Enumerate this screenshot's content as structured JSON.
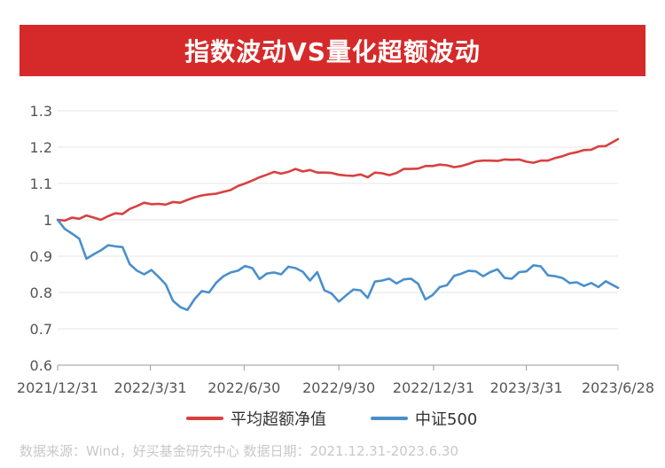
{
  "title": "指数波动VS量化超额波动",
  "source_note": "数据来源：Wind，好买基金研究中心  数据日期：2021.12.31-2023.6.30",
  "colors": {
    "title_bg": "#d62a2a",
    "series_excess": "#d94040",
    "series_csi500": "#4a8fcc"
  },
  "chart_data": {
    "type": "line",
    "title": "指数波动VS量化超额波动",
    "ylim": [
      0.6,
      1.3
    ],
    "yticks": [
      0.6,
      0.7,
      0.8,
      0.9,
      1,
      1.1,
      1.2,
      1.3
    ],
    "ytick_labels": [
      "0.6",
      "0.7",
      "0.8",
      "0.9",
      "1",
      "1.1",
      "1.2",
      "1.3"
    ],
    "grid": true,
    "legend_position": "bottom",
    "xlim": [
      "2021-12-31",
      "2023-06-28"
    ],
    "xticks": [
      "2021-12-31",
      "2022-03-31",
      "2022-06-30",
      "2022-09-30",
      "2022-12-31",
      "2023-03-31",
      "2023-06-28"
    ],
    "xtick_labels": [
      "2021/12/31",
      "2022/3/31",
      "2022/6/30",
      "2022/9/30",
      "2022/12/31",
      "2023/3/31",
      "2023/6/28"
    ],
    "series": [
      {
        "name": "平均超额净值",
        "color": "#d94040",
        "x": [
          "2021-12-31",
          "2022-01-07",
          "2022-01-14",
          "2022-01-21",
          "2022-01-28",
          "2022-02-04",
          "2022-02-11",
          "2022-02-18",
          "2022-02-25",
          "2022-03-04",
          "2022-03-11",
          "2022-03-18",
          "2022-03-25",
          "2022-04-01",
          "2022-04-08",
          "2022-04-15",
          "2022-04-22",
          "2022-04-29",
          "2022-05-06",
          "2022-05-13",
          "2022-05-20",
          "2022-05-27",
          "2022-06-03",
          "2022-06-10",
          "2022-06-17",
          "2022-06-24",
          "2022-07-01",
          "2022-07-08",
          "2022-07-15",
          "2022-07-22",
          "2022-07-29",
          "2022-08-05",
          "2022-08-12",
          "2022-08-19",
          "2022-08-26",
          "2022-09-02",
          "2022-09-09",
          "2022-09-16",
          "2022-09-23",
          "2022-09-30",
          "2022-10-07",
          "2022-10-14",
          "2022-10-21",
          "2022-10-28",
          "2022-11-04",
          "2022-11-11",
          "2022-11-18",
          "2022-11-25",
          "2022-12-02",
          "2022-12-09",
          "2022-12-16",
          "2022-12-23",
          "2022-12-30",
          "2023-01-06",
          "2023-01-13",
          "2023-01-20",
          "2023-01-27",
          "2023-02-03",
          "2023-02-10",
          "2023-02-17",
          "2023-02-24",
          "2023-03-03",
          "2023-03-10",
          "2023-03-17",
          "2023-03-24",
          "2023-03-31",
          "2023-04-07",
          "2023-04-14",
          "2023-04-21",
          "2023-04-28",
          "2023-05-05",
          "2023-05-12",
          "2023-05-19",
          "2023-05-26",
          "2023-06-02",
          "2023-06-09",
          "2023-06-16",
          "2023-06-28"
        ],
        "values": [
          1.0,
          0.998,
          1.006,
          1.003,
          1.012,
          1.006,
          1.0,
          1.01,
          1.018,
          1.016,
          1.03,
          1.038,
          1.047,
          1.043,
          1.044,
          1.042,
          1.049,
          1.047,
          1.055,
          1.062,
          1.067,
          1.07,
          1.072,
          1.077,
          1.082,
          1.093,
          1.1,
          1.108,
          1.117,
          1.124,
          1.132,
          1.127,
          1.132,
          1.14,
          1.133,
          1.137,
          1.13,
          1.13,
          1.129,
          1.124,
          1.122,
          1.121,
          1.125,
          1.117,
          1.13,
          1.128,
          1.123,
          1.129,
          1.14,
          1.14,
          1.141,
          1.148,
          1.148,
          1.152,
          1.15,
          1.145,
          1.148,
          1.154,
          1.161,
          1.163,
          1.163,
          1.162,
          1.166,
          1.165,
          1.166,
          1.16,
          1.157,
          1.163,
          1.163,
          1.17,
          1.175,
          1.182,
          1.186,
          1.192,
          1.193,
          1.202,
          1.203,
          1.222
        ]
      },
      {
        "name": "中证500",
        "color": "#4a8fcc",
        "x": [
          "2021-12-31",
          "2022-01-07",
          "2022-01-14",
          "2022-01-21",
          "2022-01-28",
          "2022-02-04",
          "2022-02-11",
          "2022-02-18",
          "2022-02-25",
          "2022-03-04",
          "2022-03-11",
          "2022-03-18",
          "2022-03-25",
          "2022-04-01",
          "2022-04-08",
          "2022-04-15",
          "2022-04-22",
          "2022-04-29",
          "2022-05-06",
          "2022-05-13",
          "2022-05-20",
          "2022-05-27",
          "2022-06-03",
          "2022-06-10",
          "2022-06-17",
          "2022-06-24",
          "2022-07-01",
          "2022-07-08",
          "2022-07-15",
          "2022-07-22",
          "2022-07-29",
          "2022-08-05",
          "2022-08-12",
          "2022-08-19",
          "2022-08-26",
          "2022-09-02",
          "2022-09-09",
          "2022-09-16",
          "2022-09-23",
          "2022-09-30",
          "2022-10-07",
          "2022-10-14",
          "2022-10-21",
          "2022-10-28",
          "2022-11-04",
          "2022-11-11",
          "2022-11-18",
          "2022-11-25",
          "2022-12-02",
          "2022-12-09",
          "2022-12-16",
          "2022-12-23",
          "2022-12-30",
          "2023-01-06",
          "2023-01-13",
          "2023-01-20",
          "2023-01-27",
          "2023-02-03",
          "2023-02-10",
          "2023-02-17",
          "2023-02-24",
          "2023-03-03",
          "2023-03-10",
          "2023-03-17",
          "2023-03-24",
          "2023-03-31",
          "2023-04-07",
          "2023-04-14",
          "2023-04-21",
          "2023-04-28",
          "2023-05-05",
          "2023-05-12",
          "2023-05-19",
          "2023-05-26",
          "2023-06-02",
          "2023-06-09",
          "2023-06-16",
          "2023-06-28"
        ],
        "values": [
          1.0,
          0.975,
          0.962,
          0.948,
          0.893,
          0.905,
          0.916,
          0.93,
          0.927,
          0.925,
          0.878,
          0.86,
          0.85,
          0.862,
          0.843,
          0.822,
          0.777,
          0.76,
          0.752,
          0.782,
          0.804,
          0.8,
          0.827,
          0.845,
          0.855,
          0.86,
          0.873,
          0.867,
          0.837,
          0.852,
          0.855,
          0.85,
          0.871,
          0.867,
          0.857,
          0.833,
          0.856,
          0.806,
          0.797,
          0.775,
          0.792,
          0.808,
          0.806,
          0.785,
          0.83,
          0.833,
          0.838,
          0.825,
          0.836,
          0.838,
          0.824,
          0.781,
          0.793,
          0.815,
          0.82,
          0.846,
          0.852,
          0.86,
          0.858,
          0.845,
          0.856,
          0.864,
          0.84,
          0.838,
          0.856,
          0.858,
          0.875,
          0.872,
          0.847,
          0.845,
          0.84,
          0.826,
          0.828,
          0.818,
          0.826,
          0.815,
          0.831,
          0.813
        ]
      }
    ]
  }
}
